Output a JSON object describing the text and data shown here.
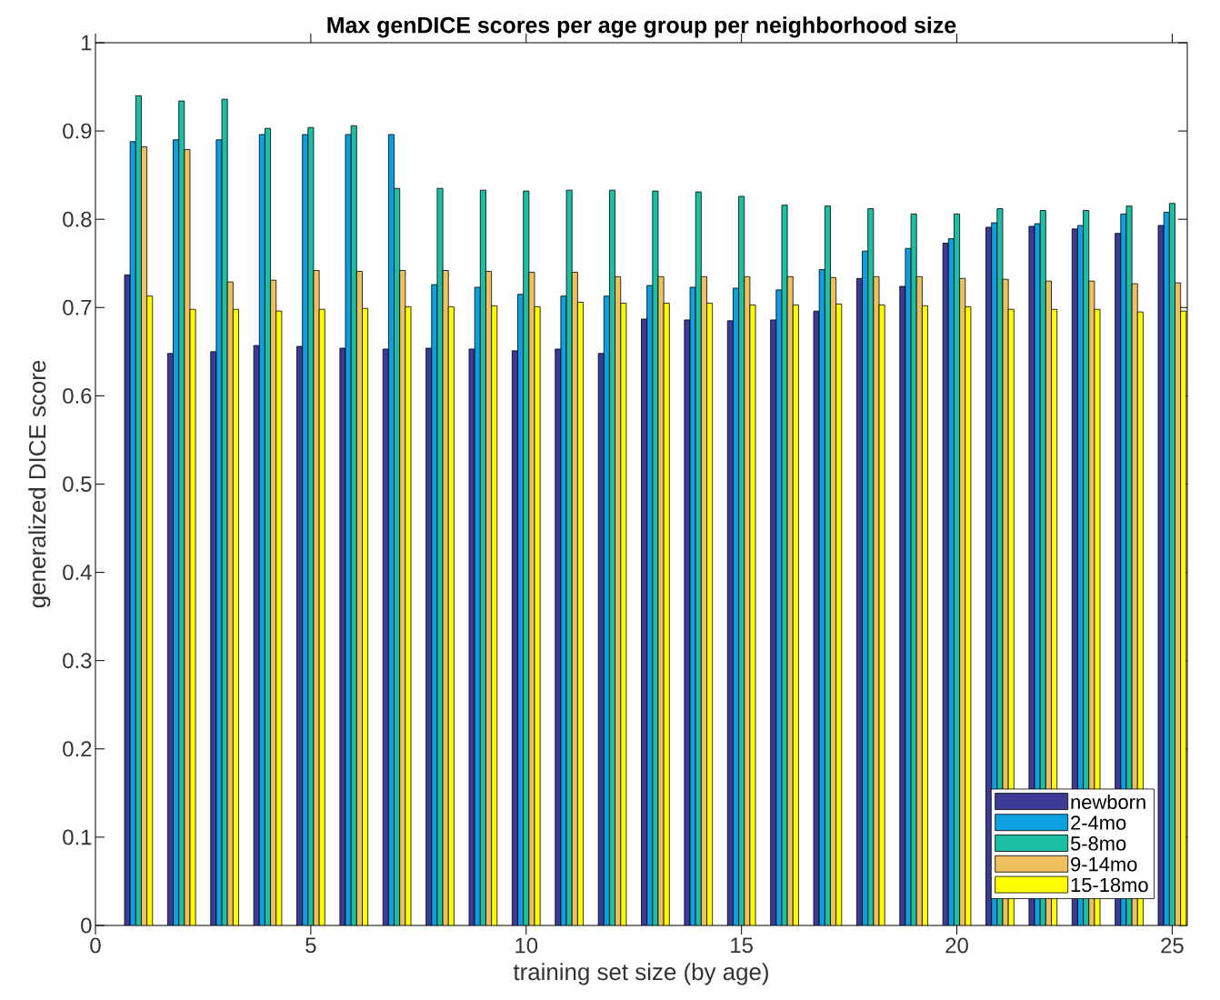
{
  "chart_data": {
    "type": "bar",
    "title": "Max genDICE scores per age group per neighborhood size",
    "xlabel": "training set size (by age)",
    "ylabel": "generalized DICE score",
    "x": [
      1,
      2,
      3,
      4,
      5,
      6,
      7,
      8,
      9,
      10,
      11,
      12,
      13,
      14,
      15,
      16,
      17,
      18,
      19,
      20,
      21,
      22,
      23,
      24,
      25
    ],
    "series": [
      {
        "name": "newborn",
        "color": "#3d3a96",
        "values": [
          0.737,
          0.648,
          0.65,
          0.657,
          0.656,
          0.654,
          0.653,
          0.654,
          0.653,
          0.651,
          0.653,
          0.648,
          0.687,
          0.686,
          0.685,
          0.686,
          0.696,
          0.733,
          0.724,
          0.773,
          0.791,
          0.792,
          0.789,
          0.784,
          0.793
        ]
      },
      {
        "name": "2-4mo",
        "color": "#0d9fe0",
        "values": [
          0.888,
          0.89,
          0.89,
          0.896,
          0.896,
          0.896,
          0.896,
          0.726,
          0.723,
          0.715,
          0.713,
          0.713,
          0.725,
          0.723,
          0.722,
          0.72,
          0.743,
          0.764,
          0.767,
          0.778,
          0.796,
          0.795,
          0.793,
          0.806,
          0.808
        ]
      },
      {
        "name": "5-8mo",
        "color": "#1cbfa3",
        "values": [
          0.94,
          0.934,
          0.936,
          0.903,
          0.904,
          0.906,
          0.835,
          0.835,
          0.833,
          0.832,
          0.833,
          0.833,
          0.832,
          0.831,
          0.826,
          0.816,
          0.815,
          0.812,
          0.806,
          0.806,
          0.812,
          0.81,
          0.81,
          0.815,
          0.818
        ]
      },
      {
        "name": "9-14mo",
        "color": "#efc060",
        "values": [
          0.882,
          0.879,
          0.729,
          0.731,
          0.742,
          0.741,
          0.742,
          0.742,
          0.741,
          0.74,
          0.74,
          0.735,
          0.735,
          0.735,
          0.735,
          0.735,
          0.734,
          0.735,
          0.735,
          0.733,
          0.732,
          0.73,
          0.73,
          0.727,
          0.728
        ]
      },
      {
        "name": "15-18mo",
        "color": "#fefe00",
        "values": [
          0.713,
          0.698,
          0.698,
          0.696,
          0.698,
          0.699,
          0.701,
          0.701,
          0.702,
          0.701,
          0.706,
          0.705,
          0.705,
          0.705,
          0.703,
          0.703,
          0.704,
          0.703,
          0.702,
          0.701,
          0.698,
          0.698,
          0.698,
          0.695,
          0.696
        ]
      }
    ],
    "xlim": [
      0,
      25.35
    ],
    "ylim": [
      0,
      1
    ],
    "xticks": [
      0,
      5,
      10,
      15,
      20,
      25
    ],
    "yticks": [
      0,
      0.1,
      0.2,
      0.3,
      0.4,
      0.5,
      0.6,
      0.7,
      0.8,
      0.9,
      1
    ],
    "legend": "bottom right"
  }
}
